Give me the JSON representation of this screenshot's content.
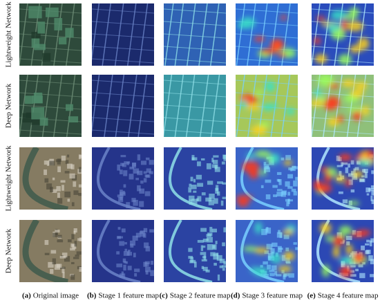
{
  "rows": [
    {
      "label": "Lightweight Network"
    },
    {
      "label": "Deep Network"
    },
    {
      "label": "Lightweight Network"
    },
    {
      "label": "Deep Network"
    }
  ],
  "columns": [
    {
      "letter": "(a)",
      "caption": "Original image"
    },
    {
      "letter": "(b)",
      "caption": "Stage 1 feature map"
    },
    {
      "letter": "(c)",
      "caption": "Stage 2 feature map"
    },
    {
      "letter": "(d)",
      "caption": "Stage 3 feature map"
    },
    {
      "letter": "(e)",
      "caption": "Stage 4 feature map"
    }
  ]
}
